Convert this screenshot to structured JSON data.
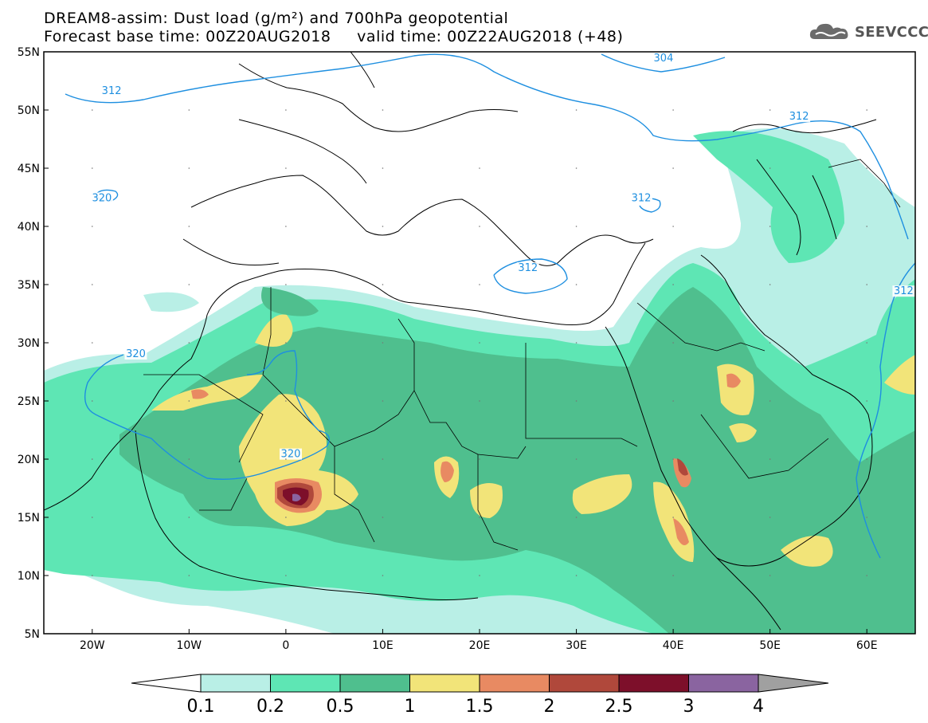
{
  "header": {
    "title_line1": "DREAM8-assim: Dust load (g/m²) and 700hPa geopotential",
    "title_line2": "Forecast base time: 00Z20AUG2018     valid time: 00Z22AUG2018 (+48)",
    "logo_text": "SEEVCCC",
    "logo_icon": "cloud-icon"
  },
  "map": {
    "lat_labels": [
      "55N",
      "50N",
      "45N",
      "40N",
      "35N",
      "30N",
      "25N",
      "20N",
      "15N",
      "10N",
      "5N"
    ],
    "lon_labels": [
      "20W",
      "10W",
      "0",
      "10E",
      "20E",
      "30E",
      "40E",
      "50E",
      "60E"
    ],
    "lon_range": [
      -25,
      65
    ],
    "lat_range": [
      5,
      55
    ],
    "contours": [
      {
        "label": "312",
        "lon": -18,
        "lat": 51.5
      },
      {
        "label": "304",
        "lon": 39,
        "lat": 54.3
      },
      {
        "label": "312",
        "lon": 53,
        "lat": 49.3
      },
      {
        "label": "320",
        "lon": -19,
        "lat": 42.3
      },
      {
        "label": "312",
        "lon": 36.7,
        "lat": 42.3
      },
      {
        "label": "312",
        "lon": 25,
        "lat": 36.3
      },
      {
        "label": "312",
        "lon": 63.8,
        "lat": 34.3
      },
      {
        "label": "320",
        "lon": -15.5,
        "lat": 28.9
      },
      {
        "label": "320",
        "lon": 0.5,
        "lat": 20.3
      }
    ]
  },
  "colorbar": {
    "labels": [
      "0.1",
      "0.2",
      "0.5",
      "1",
      "1.5",
      "2",
      "2.5",
      "3",
      "4"
    ],
    "colors": [
      "#ffffff",
      "#b9efe6",
      "#5ee6b4",
      "#4fbf8e",
      "#f2e479",
      "#e88a62",
      "#b0483b",
      "#7d0f2a",
      "#8a64a0",
      "#a0a0a0"
    ]
  },
  "colors": {
    "contour": "#1e8fe0",
    "dust_0_1": "#b9efe6",
    "dust_0_2": "#5ee6b4",
    "dust_0_5": "#4fbf8e",
    "dust_1": "#f2e479",
    "dust_1_5": "#e88a62",
    "dust_2": "#b0483b",
    "dust_2_5": "#7d0f2a",
    "dust_3": "#8a64a0"
  }
}
